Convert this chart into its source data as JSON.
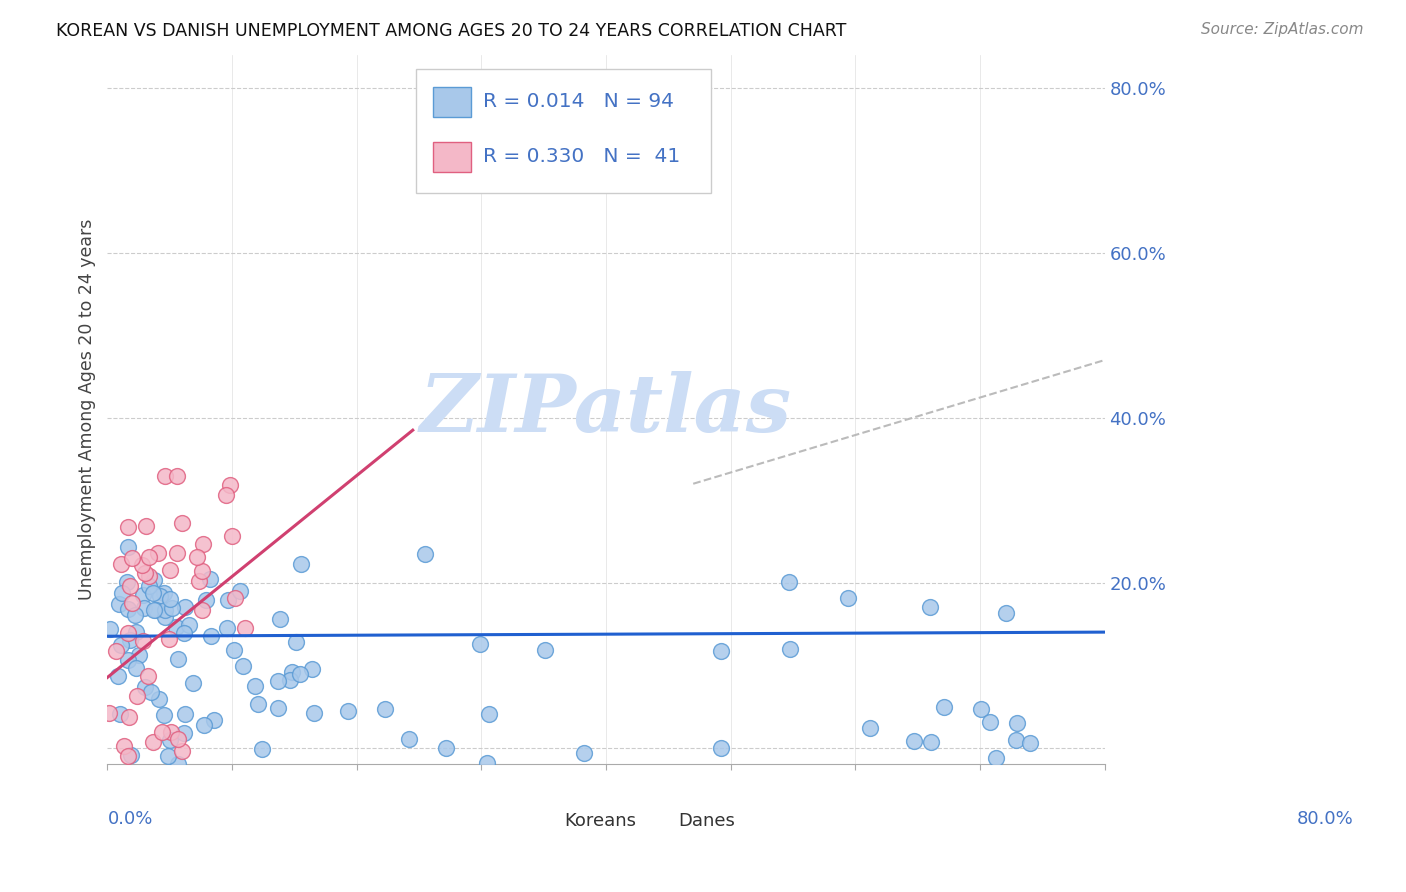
{
  "title": "KOREAN VS DANISH UNEMPLOYMENT AMONG AGES 20 TO 24 YEARS CORRELATION CHART",
  "source": "Source: ZipAtlas.com",
  "ylabel": "Unemployment Among Ages 20 to 24 years",
  "xlim": [
    0,
    0.8
  ],
  "ylim": [
    -0.02,
    0.84
  ],
  "yticks": [
    0.0,
    0.2,
    0.4,
    0.6,
    0.8
  ],
  "ytick_labels": [
    "",
    "20.0%",
    "40.0%",
    "60.0%",
    "80.0%"
  ],
  "korean_color": "#a8c8ea",
  "korean_edge_color": "#5b9bd5",
  "dane_color": "#f4b8c8",
  "dane_edge_color": "#e06080",
  "korean_line_color": "#2060d0",
  "dane_line_color": "#d04070",
  "tick_label_color": "#4472c4",
  "background_color": "#ffffff",
  "watermark_color": "#ccddf5",
  "grid_color": "#cccccc",
  "korean_trend": [
    0.0,
    0.8,
    0.135,
    0.14
  ],
  "dane_trend": [
    0.0,
    0.245,
    0.085,
    0.385
  ],
  "dash_line": [
    0.47,
    0.8,
    0.32,
    0.47
  ]
}
